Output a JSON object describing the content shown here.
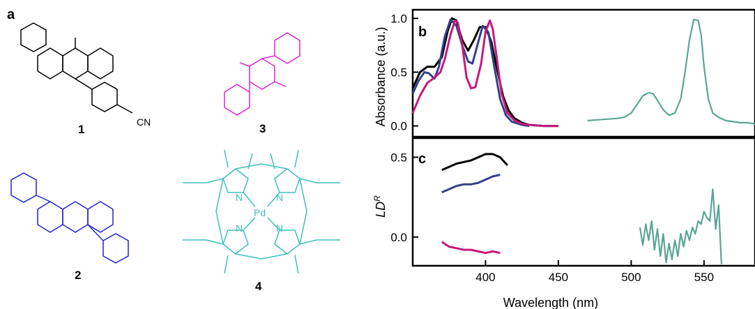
{
  "panels": {
    "a": "a",
    "b": "b",
    "c": "c"
  },
  "compounds": [
    {
      "label": "1",
      "color": "#000000",
      "substituent": "CN"
    },
    {
      "label": "2",
      "color": "#2222cc"
    },
    {
      "label": "3",
      "color": "#e020d8"
    },
    {
      "label": "4",
      "color": "#3fbfb8",
      "atoms": [
        "N",
        "N",
        "N",
        "N",
        "Pd"
      ]
    }
  ],
  "colors": {
    "black": "#000000",
    "navy": "#34408a",
    "magenta": "#c41a7e",
    "teal": "#5aa595"
  },
  "chart_data": [
    {
      "type": "line",
      "panel": "b",
      "ylabel": "Absorbance (a.u.)",
      "xlim": [
        350,
        585
      ],
      "ylim": [
        -0.1,
        1.08
      ],
      "yticks": [
        "0.0",
        "0.5",
        "1.0"
      ],
      "series": [
        {
          "color": "black",
          "x": [
            350,
            355,
            360,
            365,
            370,
            374,
            377,
            380,
            384,
            388,
            392,
            396,
            400,
            404,
            408,
            412,
            416,
            420,
            425,
            430,
            440,
            450
          ],
          "y": [
            0.35,
            0.5,
            0.55,
            0.55,
            0.64,
            0.88,
            1.0,
            0.98,
            0.8,
            0.7,
            0.8,
            0.92,
            0.92,
            0.78,
            0.52,
            0.28,
            0.14,
            0.07,
            0.03,
            0.01,
            0.0,
            0.0
          ]
        },
        {
          "color": "navy",
          "x": [
            350,
            354,
            358,
            361,
            365,
            368,
            372,
            376,
            380,
            384,
            388,
            391,
            395,
            398,
            402,
            406,
            410,
            414,
            418,
            425,
            430
          ],
          "y": [
            0.3,
            0.42,
            0.5,
            0.49,
            0.44,
            0.55,
            0.83,
            0.99,
            0.93,
            0.75,
            0.6,
            0.58,
            0.78,
            0.93,
            0.87,
            0.55,
            0.25,
            0.1,
            0.04,
            0.01,
            0.0
          ]
        },
        {
          "color": "magenta",
          "x": [
            350,
            355,
            360,
            365,
            369,
            372,
            376,
            379,
            381,
            384,
            387,
            390,
            393,
            397,
            400,
            403,
            405,
            408,
            411,
            415,
            420,
            425,
            430,
            440,
            450
          ],
          "y": [
            0.12,
            0.28,
            0.4,
            0.45,
            0.5,
            0.62,
            0.85,
            0.98,
            0.96,
            0.75,
            0.45,
            0.35,
            0.36,
            0.58,
            0.88,
            0.98,
            0.9,
            0.6,
            0.3,
            0.12,
            0.05,
            0.02,
            0.01,
            0.0,
            0.0
          ]
        },
        {
          "color": "teal",
          "x": [
            470,
            480,
            490,
            495,
            500,
            504,
            508,
            512,
            515,
            518,
            522,
            526,
            530,
            534,
            537,
            540,
            543,
            546,
            548,
            550,
            553,
            556,
            560,
            565,
            570,
            575,
            580,
            585
          ],
          "y": [
            0.05,
            0.06,
            0.07,
            0.08,
            0.12,
            0.2,
            0.28,
            0.31,
            0.3,
            0.24,
            0.15,
            0.1,
            0.12,
            0.25,
            0.5,
            0.8,
            0.99,
            0.98,
            0.85,
            0.55,
            0.25,
            0.12,
            0.08,
            0.05,
            0.04,
            0.03,
            0.03,
            0.02
          ]
        }
      ]
    },
    {
      "type": "line",
      "panel": "c",
      "ylabel_main": "LD",
      "ylabel_sup": "R",
      "xlabel": "Wavelength (nm)",
      "xlim": [
        350,
        585
      ],
      "ylim": [
        -0.18,
        0.62
      ],
      "xticks": [
        "400",
        "450",
        "500",
        "550"
      ],
      "yticks": [
        "0.0",
        "0.5"
      ],
      "series": [
        {
          "color": "black",
          "x": [
            370,
            375,
            380,
            385,
            390,
            395,
            400,
            405,
            410,
            415
          ],
          "y": [
            0.42,
            0.44,
            0.46,
            0.47,
            0.48,
            0.5,
            0.52,
            0.52,
            0.5,
            0.45
          ]
        },
        {
          "color": "navy",
          "x": [
            370,
            375,
            380,
            385,
            390,
            395,
            400,
            405,
            410
          ],
          "y": [
            0.28,
            0.3,
            0.32,
            0.33,
            0.33,
            0.34,
            0.36,
            0.38,
            0.39
          ]
        },
        {
          "color": "magenta",
          "x": [
            370,
            375,
            380,
            385,
            390,
            395,
            400,
            405,
            410
          ],
          "y": [
            -0.03,
            -0.06,
            -0.07,
            -0.08,
            -0.08,
            -0.09,
            -0.1,
            -0.09,
            -0.1
          ]
        },
        {
          "color": "teal",
          "x": [
            506,
            508,
            510,
            512,
            514,
            516,
            518,
            520,
            522,
            524,
            526,
            528,
            530,
            532,
            534,
            536,
            538,
            540,
            542,
            544,
            546,
            548,
            550,
            552,
            554,
            556,
            558,
            560,
            562
          ],
          "y": [
            0.06,
            -0.05,
            0.08,
            -0.02,
            0.1,
            -0.08,
            0.05,
            -0.12,
            0.02,
            -0.16,
            -0.04,
            -0.14,
            -0.02,
            -0.12,
            0.02,
            -0.06,
            0.04,
            -0.02,
            0.06,
            0.02,
            0.1,
            0.08,
            0.16,
            0.12,
            0.1,
            0.3,
            0.05,
            0.2,
            -0.17
          ]
        }
      ]
    }
  ]
}
